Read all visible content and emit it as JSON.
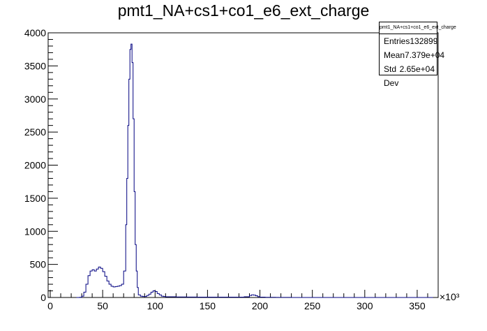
{
  "chart_data": {
    "type": "histogram",
    "title": "pmt1_NA+cs1+co1_e6_ext_charge",
    "x_exponent_label": "×10³",
    "xlim": [
      -2,
      370
    ],
    "ylim": [
      0,
      4000
    ],
    "x_ticks": [
      0,
      50,
      100,
      150,
      200,
      250,
      300,
      350
    ],
    "y_ticks": [
      0,
      500,
      1000,
      1500,
      2000,
      2500,
      3000,
      3500,
      4000
    ],
    "x_tick_labels": [
      "0",
      "50",
      "100",
      "150",
      "200",
      "250",
      "300",
      "350"
    ],
    "y_tick_labels": [
      "0",
      "500",
      "1000",
      "1500",
      "2000",
      "2500",
      "3000",
      "3500",
      "4000"
    ],
    "line_color": "#000080",
    "series": [
      {
        "x": [
          25,
          28,
          30,
          32,
          34,
          36,
          38,
          40,
          42,
          44,
          46,
          48,
          50,
          52,
          54,
          56,
          58,
          60,
          62,
          64,
          66,
          68,
          70,
          72,
          73,
          74,
          75,
          76,
          77,
          78,
          79,
          80,
          81,
          82,
          83,
          84,
          86,
          88,
          90,
          92,
          94,
          96,
          98,
          100,
          102,
          104,
          106,
          108,
          110,
          115,
          120,
          125,
          130,
          135,
          140,
          145,
          150,
          155,
          160,
          165,
          170,
          175,
          180,
          185,
          190,
          192,
          194,
          196,
          198,
          200,
          205,
          210,
          215,
          220,
          230,
          240,
          250,
          300,
          365
        ],
        "y": [
          0,
          2,
          20,
          80,
          200,
          330,
          400,
          420,
          400,
          430,
          460,
          440,
          390,
          320,
          250,
          200,
          170,
          160,
          165,
          170,
          180,
          200,
          400,
          1100,
          1800,
          2600,
          3300,
          3750,
          3830,
          3550,
          2700,
          1600,
          800,
          400,
          150,
          40,
          20,
          15,
          15,
          30,
          50,
          80,
          100,
          90,
          60,
          40,
          20,
          15,
          10,
          10,
          8,
          8,
          6,
          6,
          5,
          5,
          5,
          5,
          5,
          5,
          5,
          5,
          5,
          10,
          30,
          40,
          35,
          25,
          12,
          5,
          3,
          2,
          1,
          1,
          0,
          0,
          0,
          0,
          0
        ]
      }
    ]
  },
  "stats": {
    "name": "pmt1_NA+cs1+co1_e6_ext_charge",
    "rows": [
      {
        "label": "Entries",
        "value": "132899"
      },
      {
        "label": "Mean",
        "value": "7.379e+04"
      },
      {
        "label": "Std Dev",
        "value": "2.65e+04"
      }
    ]
  }
}
